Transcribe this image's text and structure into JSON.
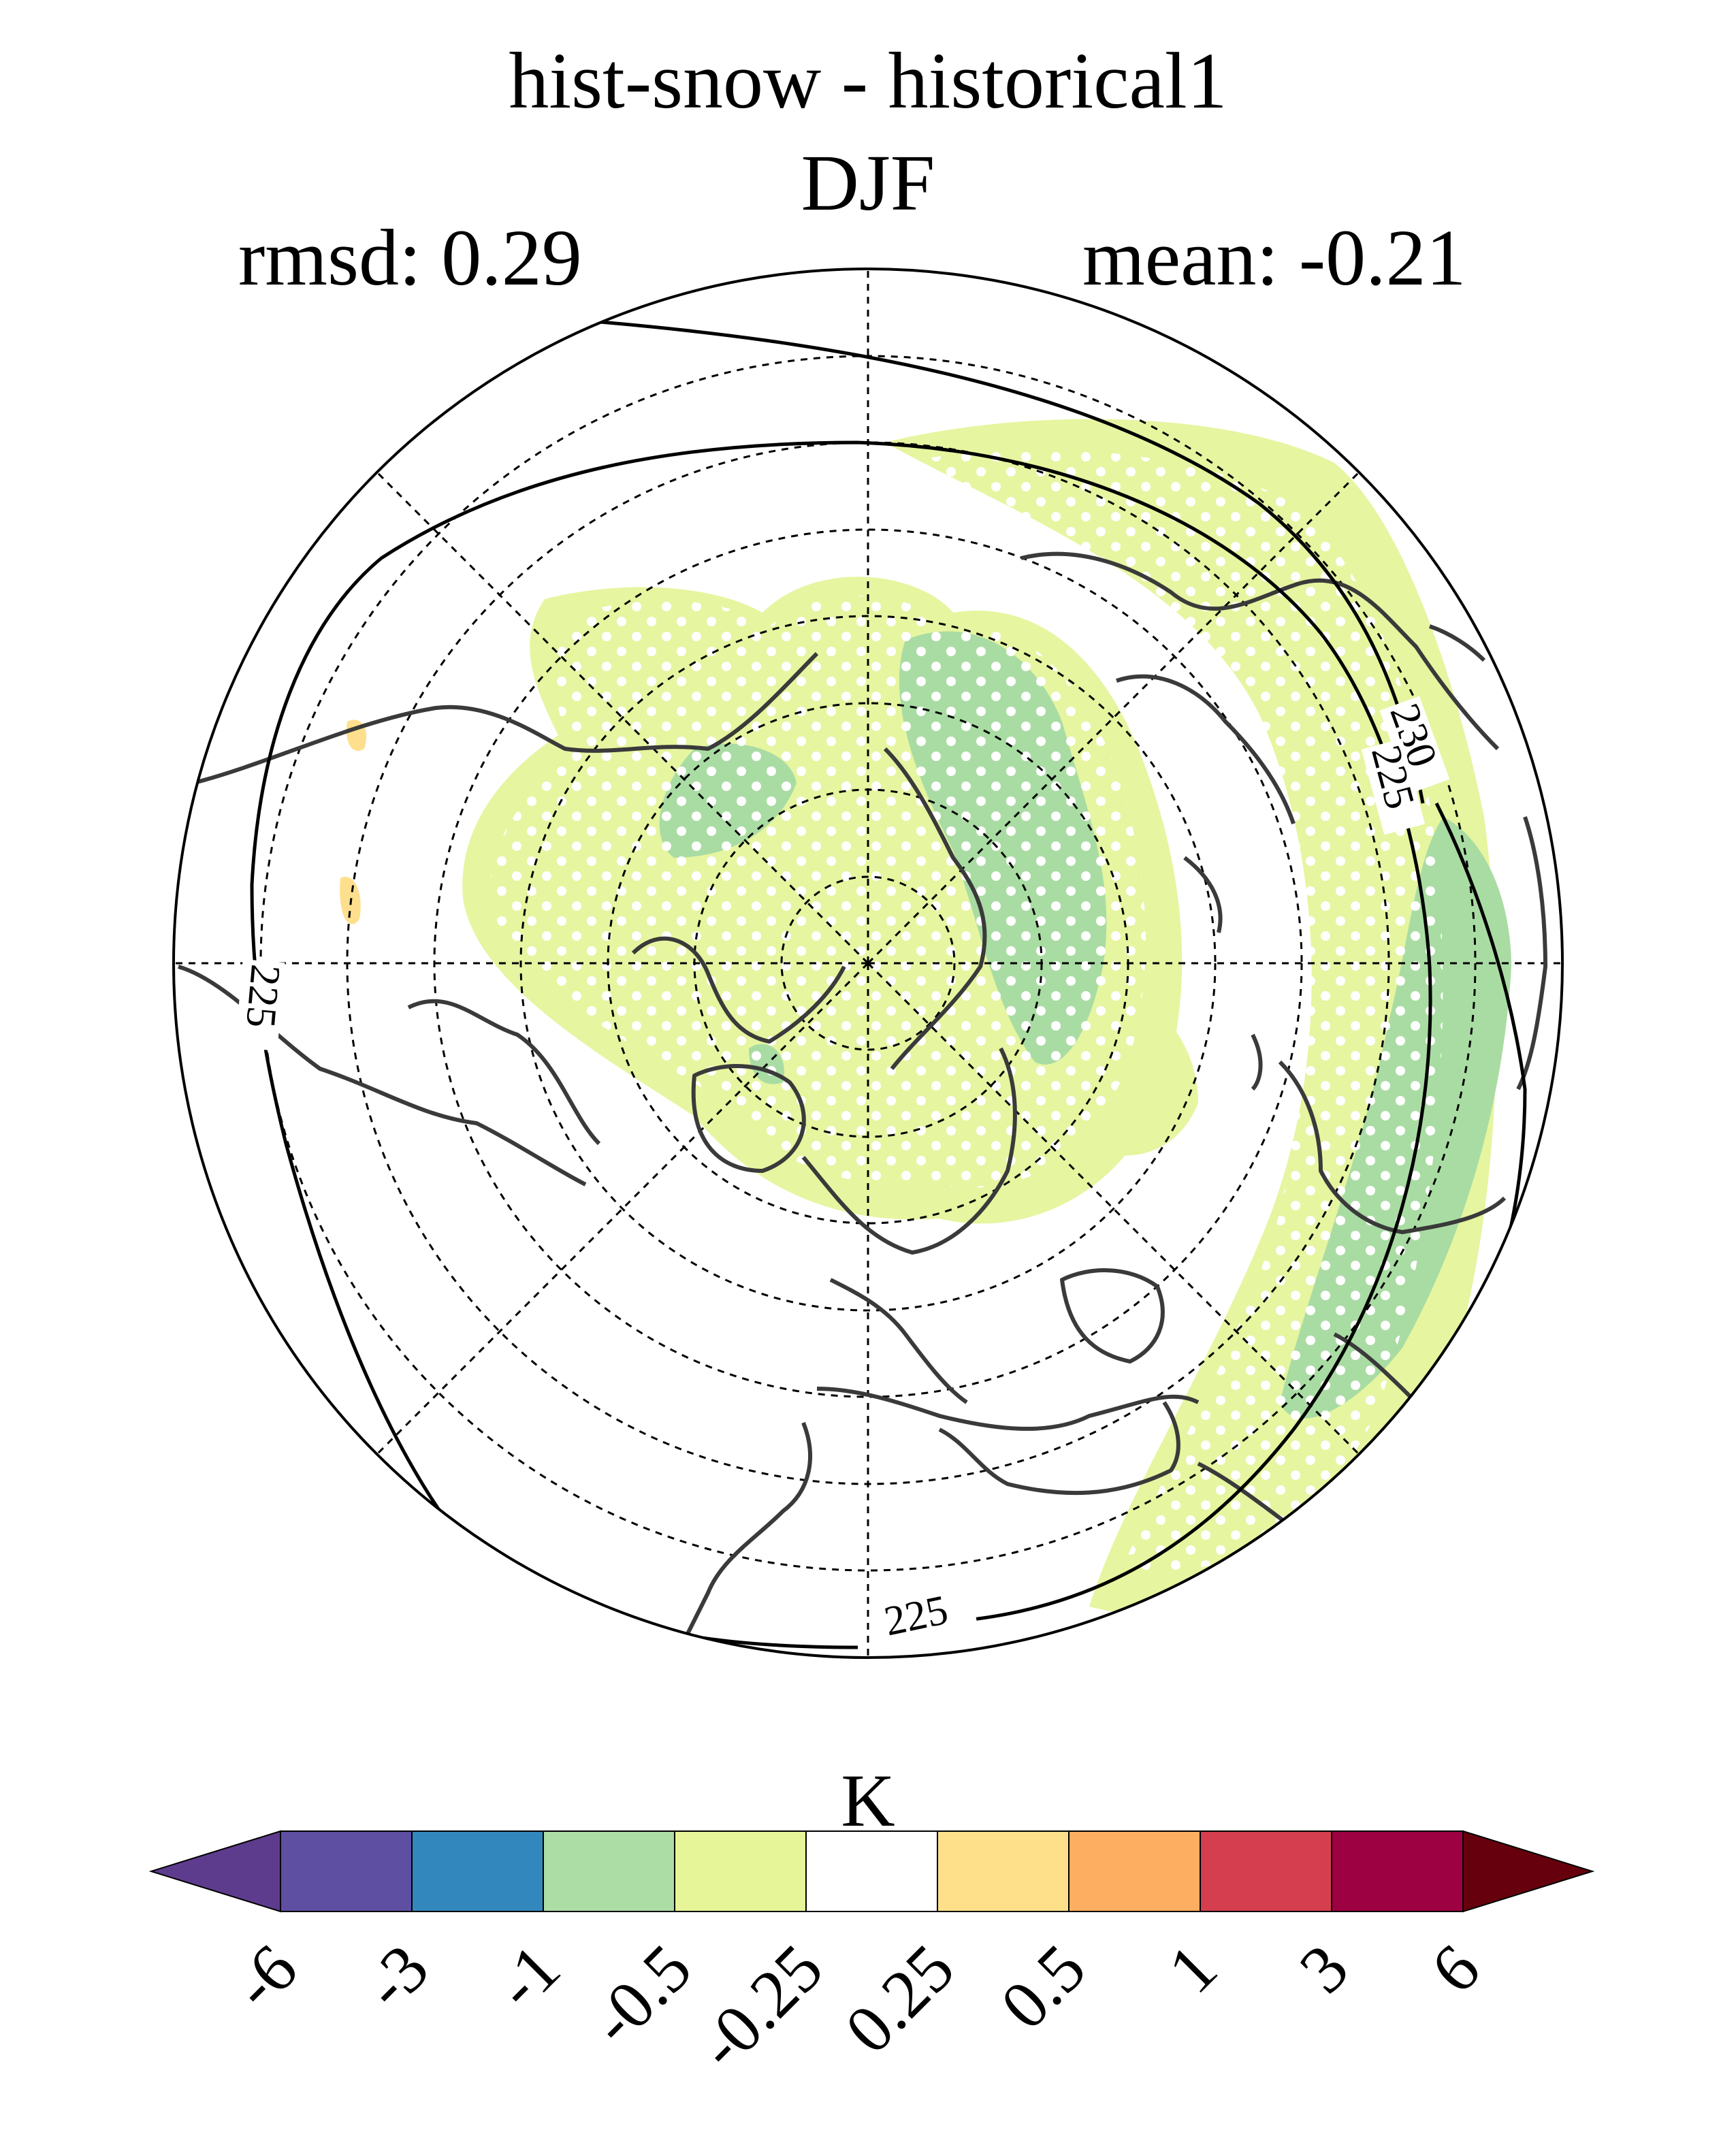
{
  "title": "hist-snow - historical1",
  "season": "DJF",
  "rmsd_label": "rmsd: 0.29",
  "mean_label": "mean: -0.21",
  "map": {
    "projection": "north-polar-stereographic",
    "contour_labels": [
      "230",
      "225",
      "225",
      "225"
    ],
    "stipple": "white dots mark significant areas",
    "colors": {
      "coastline": "#3a3a3a",
      "contour": "#000000",
      "grid": "#000000",
      "fill_light": "#e6f5a0",
      "fill_green": "#a9dca3",
      "fill_orange": "#fddf8e"
    }
  },
  "colorbar": {
    "unit": "K",
    "ticks": [
      "-6",
      "-3",
      "-1",
      "-0.5",
      "-0.25",
      "0.25",
      "0.5",
      "1",
      "3",
      "6"
    ],
    "colors": [
      "#5e3c8d",
      "#5e4fa2",
      "#3288bd",
      "#abdda4",
      "#e6f598",
      "#ffffff",
      "#fee08b",
      "#fdae61",
      "#d53e4f",
      "#9e0142",
      "#67000d"
    ]
  }
}
